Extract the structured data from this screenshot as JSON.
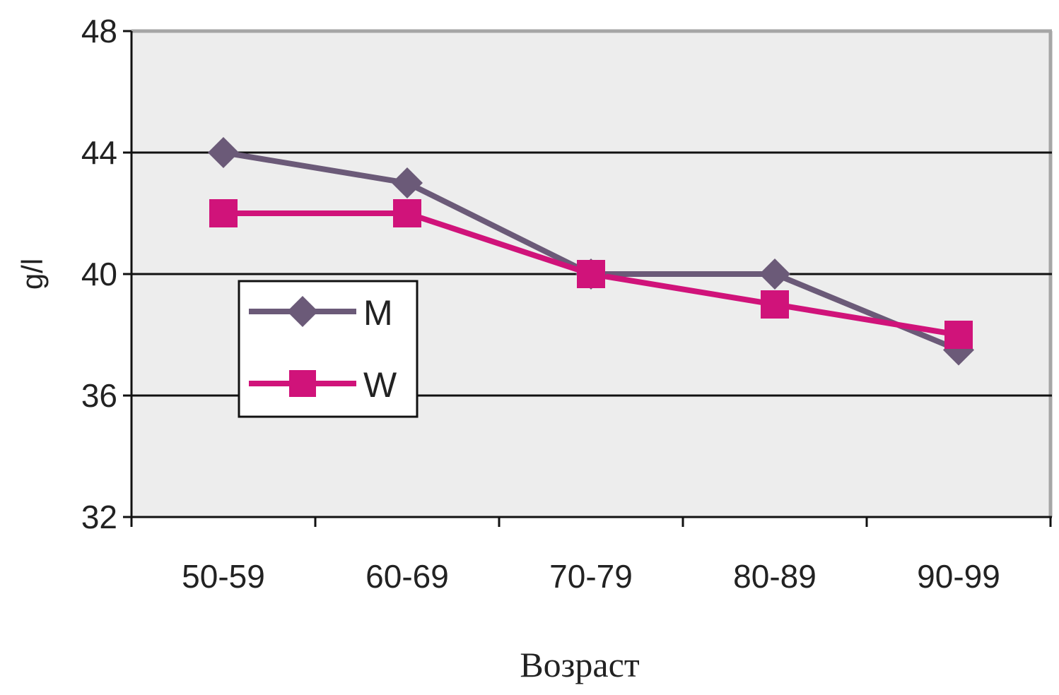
{
  "chart_data": {
    "type": "line",
    "title": "",
    "xlabel": "Возраст",
    "ylabel": "g/l",
    "categories": [
      "50-59",
      "60-69",
      "70-79",
      "80-89",
      "90-99"
    ],
    "ylim": [
      32,
      48
    ],
    "yticks": [
      "32",
      "36",
      "40",
      "44",
      "48"
    ],
    "grid": true,
    "legend_position": "left",
    "series": [
      {
        "name": "M",
        "color": "#6b5a78",
        "marker": "diamond",
        "values": [
          44,
          43,
          40,
          40,
          37.5
        ]
      },
      {
        "name": "W",
        "color": "#d0137a",
        "marker": "square",
        "values": [
          42,
          42,
          40,
          39,
          38
        ]
      }
    ],
    "plot_background": "#ededed"
  }
}
